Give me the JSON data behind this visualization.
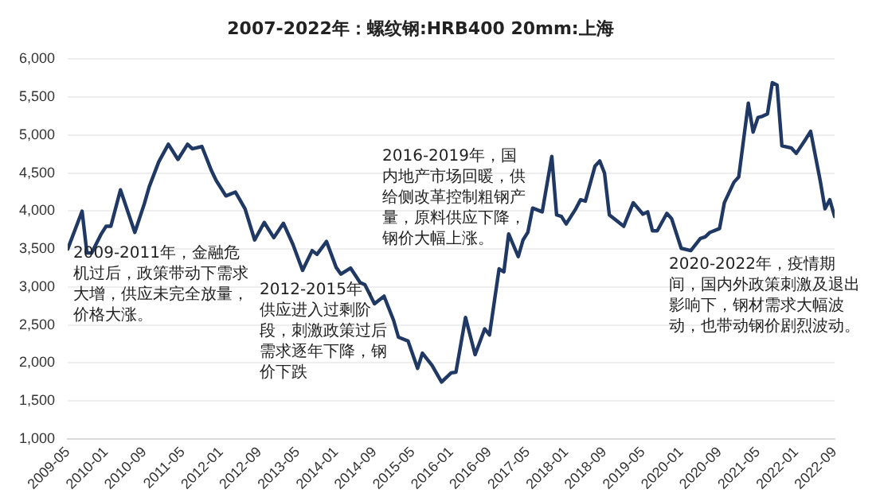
{
  "chart_data": {
    "type": "line",
    "title": "2007-2022年：螺纹钢:HRB400 20mm:上海",
    "x": [
      "2009-05",
      "2009-08",
      "2009-09",
      "2009-10",
      "2009-12",
      "2010-01",
      "2010-02",
      "2010-04",
      "2010-07",
      "2010-09",
      "2010-10",
      "2010-12",
      "2011-02",
      "2011-04",
      "2011-06",
      "2011-07",
      "2011-09",
      "2011-11",
      "2011-12",
      "2012-02",
      "2012-04",
      "2012-06",
      "2012-08",
      "2012-10",
      "2012-12",
      "2013-02",
      "2013-04",
      "2013-06",
      "2013-08",
      "2013-09",
      "2013-11",
      "2014-01",
      "2014-02",
      "2014-04",
      "2014-06",
      "2014-07",
      "2014-09",
      "2014-11",
      "2015-01",
      "2015-02",
      "2015-04",
      "2015-06",
      "2015-07",
      "2015-09",
      "2015-11",
      "2016-01",
      "2016-02",
      "2016-04",
      "2016-06",
      "2016-08",
      "2016-09",
      "2016-11",
      "2016-12",
      "2017-01",
      "2017-03",
      "2017-04",
      "2017-05",
      "2017-06",
      "2017-08",
      "2017-10",
      "2017-11",
      "2017-12",
      "2018-01",
      "2018-03",
      "2018-04",
      "2018-05",
      "2018-07",
      "2018-08",
      "2018-09",
      "2018-10",
      "2019-01",
      "2019-03",
      "2019-05",
      "2019-06",
      "2019-07",
      "2019-08",
      "2019-10",
      "2019-11",
      "2020-01",
      "2020-03",
      "2020-05",
      "2020-06",
      "2020-07",
      "2020-09",
      "2020-10",
      "2020-12",
      "2021-01",
      "2021-03",
      "2021-04",
      "2021-05",
      "2021-06",
      "2021-07",
      "2021-08",
      "2021-09",
      "2021-10",
      "2021-12",
      "2022-01",
      "2022-03",
      "2022-04",
      "2022-06",
      "2022-07",
      "2022-08",
      "2022-09"
    ],
    "series": [
      {
        "color": "#1f3864",
        "values": [
          3500,
          4000,
          3450,
          3450,
          3700,
          3800,
          3800,
          4280,
          3720,
          4100,
          4320,
          4650,
          4880,
          4680,
          4880,
          4820,
          4850,
          4530,
          4400,
          4200,
          4250,
          4030,
          3620,
          3850,
          3650,
          3840,
          3560,
          3220,
          3480,
          3430,
          3600,
          3260,
          3170,
          3250,
          3060,
          3030,
          2780,
          2880,
          2560,
          2340,
          2290,
          1930,
          2130,
          1970,
          1750,
          1870,
          1880,
          2600,
          2110,
          2450,
          2370,
          3240,
          3200,
          3700,
          3400,
          3620,
          3720,
          4040,
          3990,
          4720,
          3950,
          3930,
          3830,
          4030,
          4150,
          4130,
          4590,
          4660,
          4500,
          3950,
          3800,
          4110,
          3960,
          3990,
          3740,
          3740,
          3970,
          3900,
          3510,
          3480,
          3640,
          3660,
          3720,
          3770,
          4110,
          4380,
          4450,
          5420,
          5040,
          5230,
          5250,
          5280,
          5690,
          5660,
          4860,
          4830,
          4760,
          4950,
          5050,
          4400,
          4030,
          4150,
          3930
        ]
      }
    ],
    "xlim": [
      "2009-05",
      "2022-09"
    ],
    "xticks": [
      "2009-05",
      "2010-01",
      "2010-09",
      "2011-05",
      "2012-01",
      "2012-09",
      "2013-05",
      "2014-01",
      "2014-09",
      "2015-05",
      "2016-01",
      "2016-09",
      "2017-05",
      "2018-01",
      "2018-09",
      "2019-05",
      "2020-01",
      "2020-09",
      "2021-05",
      "2022-01",
      "2022-09"
    ],
    "ylim": [
      1000,
      6000
    ],
    "yticks": [
      {
        "value": 1000,
        "label": "1,000"
      },
      {
        "value": 1500,
        "label": "1,500"
      },
      {
        "value": 2000,
        "label": "2,000"
      },
      {
        "value": 2500,
        "label": "2,500"
      },
      {
        "value": 3000,
        "label": "3,000"
      },
      {
        "value": 3500,
        "label": "3,500"
      },
      {
        "value": 4000,
        "label": "4,000"
      },
      {
        "value": 4500,
        "label": "4,500"
      },
      {
        "value": 5000,
        "label": "5,000"
      },
      {
        "value": 5500,
        "label": "5,500"
      },
      {
        "value": 6000,
        "label": "6,000"
      }
    ],
    "grid": "y",
    "legend": false,
    "marker": "none",
    "line_style": "solid",
    "annotations": [
      "2009-2011年，金融危机过后，政策带动下需求大增，供应未完全放量，价格大涨。",
      "2012-2015年，供应进入过剩阶段，刺激政策过后需求逐年下降，钢价下跌",
      "2016-2019年，国内地产市场回暖，供给侧改革控制粗钢产量，原料供应下降，钢价大幅上涨。",
      "2020-2022年，疫情期间，国内外政策刺激及退出影响下，钢材需求大幅波动，也带动钢价剧烈波动。"
    ]
  }
}
